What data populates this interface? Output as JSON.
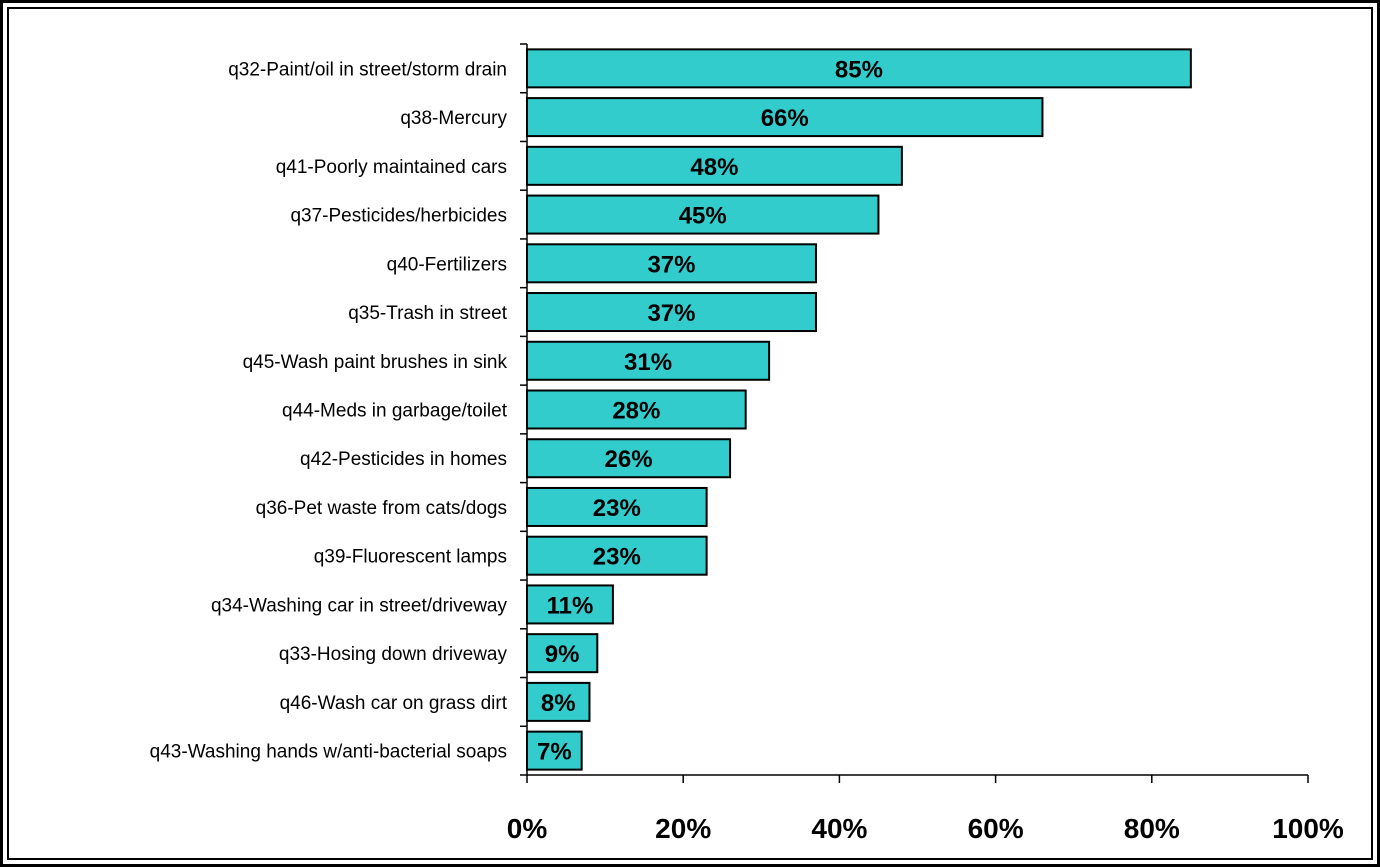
{
  "chart_data": {
    "type": "bar",
    "orientation": "horizontal",
    "categories": [
      "q32-Paint/oil in street/storm drain",
      "q38-Mercury",
      "q41-Poorly maintained cars",
      "q37-Pesticides/herbicides",
      "q40-Fertilizers",
      "q35-Trash in street",
      "q45-Wash paint brushes in sink",
      "q44-Meds in garbage/toilet",
      "q42-Pesticides in homes",
      "q36-Pet waste from cats/dogs",
      "q39-Fluorescent lamps",
      "q34-Washing car in street/driveway",
      "q33-Hosing down driveway",
      "q46-Wash car on grass dirt",
      "q43-Washing hands w/anti-bacterial soaps"
    ],
    "values": [
      85,
      66,
      48,
      45,
      37,
      37,
      31,
      28,
      26,
      23,
      23,
      11,
      9,
      8,
      7
    ],
    "data_labels": [
      "85%",
      "66%",
      "48%",
      "45%",
      "37%",
      "37%",
      "31%",
      "28%",
      "26%",
      "23%",
      "23%",
      "11%",
      "9%",
      "8%",
      "7%"
    ],
    "x_ticks": [
      "0%",
      "20%",
      "40%",
      "60%",
      "80%",
      "100%"
    ],
    "xlim": [
      0,
      100
    ],
    "bar_color": "#33CCCC",
    "grid": false,
    "legend": "none"
  }
}
